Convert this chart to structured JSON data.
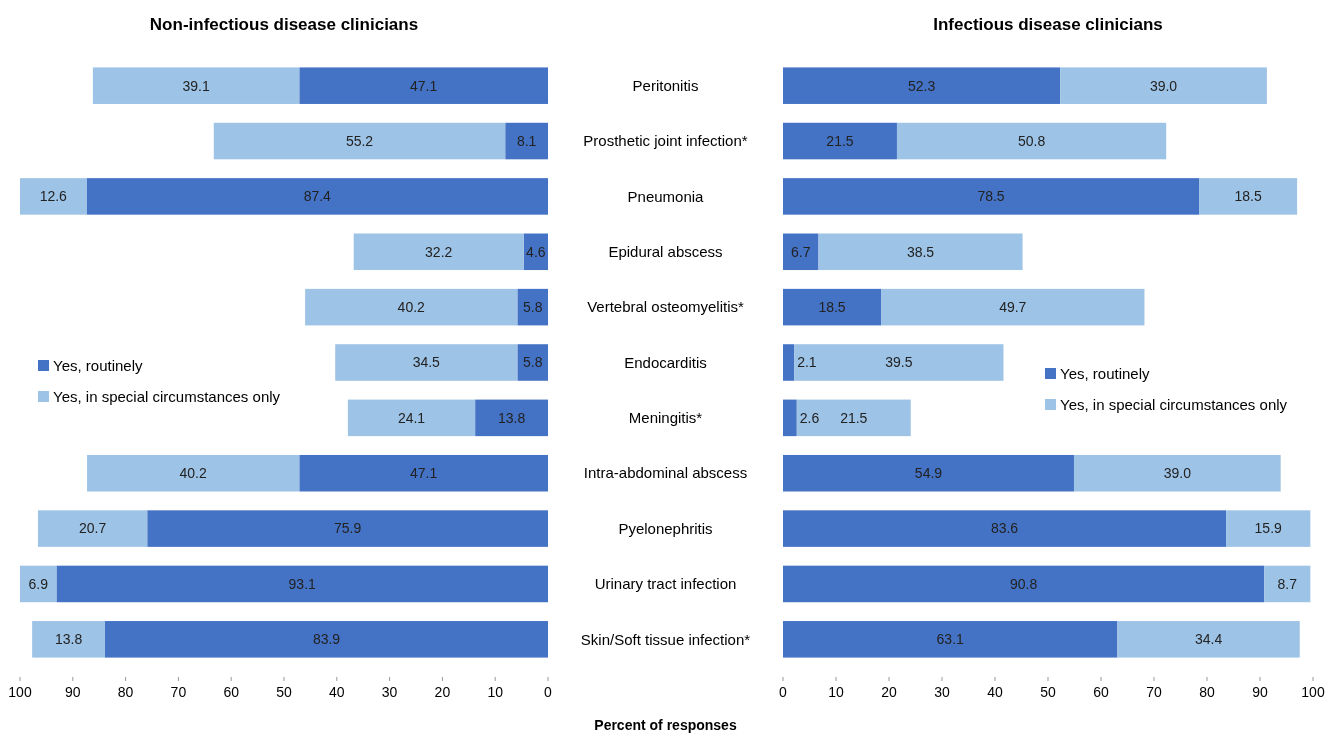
{
  "chart_data": [
    {
      "type": "bar",
      "title": "Non-infectious disease clinicians",
      "orientation": "horizontal",
      "stacked": true,
      "xlabel": "Percent of responses",
      "legend": "left",
      "categories": [
        "Peritonitis",
        "Prosthetic joint infection*",
        "Pneumonia",
        "Epidural abscess",
        "Vertebral osteomyelitis*",
        "Endocarditis",
        "Meningitis*",
        "Intra-abdominal abscess",
        "Pyelonephritis",
        "Urinary tract infection",
        "Skin/Soft tissue infection*"
      ],
      "xlim": [
        100,
        0
      ],
      "xticks": [
        100,
        90,
        80,
        70,
        60,
        50,
        40,
        30,
        20,
        10,
        0
      ],
      "series": [
        {
          "name": "Yes, routinely",
          "color": "#4472c4",
          "values": [
            47.1,
            8.1,
            87.4,
            4.6,
            5.8,
            5.8,
            13.8,
            47.1,
            75.9,
            93.1,
            83.9
          ],
          "value_labels": [
            "47.1",
            "8.1",
            "87.4",
            "4.6",
            "5.8",
            "5.8",
            "13.8",
            "47.1",
            "75.9",
            "93.1",
            "83.9"
          ]
        },
        {
          "name": "Yes, in special circumstances only",
          "color": "#9dc3e6",
          "values": [
            39.1,
            55.2,
            12.6,
            32.2,
            40.2,
            34.5,
            24.1,
            40.2,
            20.7,
            6.9,
            13.8
          ],
          "value_labels": [
            "39.1",
            "55.2",
            "12.6",
            "32.2",
            "40.2",
            "34.5",
            "24.1",
            "40.2",
            "20.7",
            "6.9",
            "13.8"
          ]
        }
      ]
    },
    {
      "type": "bar",
      "title": "Infectious disease clinicians",
      "orientation": "horizontal",
      "stacked": true,
      "tick_labels": "x",
      "legend": "right",
      "categories": [
        null,
        null,
        null,
        null,
        null,
        null,
        null,
        null,
        null,
        null,
        null
      ],
      "xlim": [
        0,
        100
      ],
      "xticks": [
        0,
        10,
        20,
        30,
        40,
        50,
        60,
        70,
        80,
        90,
        100
      ],
      "series": [
        {
          "name": "Yes, routinely",
          "color": "#4472c4",
          "values": [
            52.3,
            21.5,
            78.5,
            6.7,
            18.5,
            2.1,
            2.6,
            54.9,
            83.6,
            90.8,
            63.1
          ],
          "value_labels": [
            "52.3",
            "21.5",
            "78.5",
            "6.7",
            "18.5",
            "2.1",
            "2.6",
            "54.9",
            "83.6",
            "90.8",
            "63.1"
          ]
        },
        {
          "name": "Yes, in special circumstances only",
          "color": "#9dc3e6",
          "values": [
            39.0,
            50.8,
            18.5,
            38.5,
            49.7,
            39.5,
            21.5,
            39.0,
            15.9,
            8.7,
            34.4
          ],
          "value_labels": [
            "39.0",
            "50.8",
            "18.5",
            "38.5",
            "49.7",
            "39.5",
            "21.5",
            "39.0",
            "15.9",
            "8.7",
            "34.4"
          ]
        }
      ]
    }
  ]
}
